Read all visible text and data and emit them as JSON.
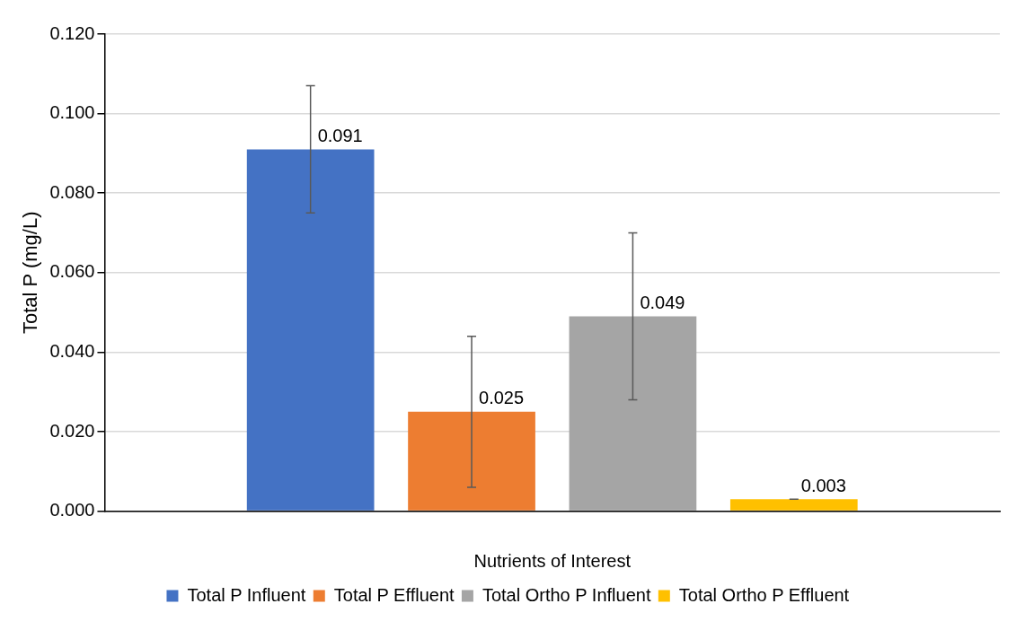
{
  "chart_data": {
    "type": "bar",
    "xlabel": "Nutrients of Interest",
    "ylabel": "Total P (mg/L)",
    "categories": [
      null
    ],
    "series": [
      {
        "name": "Total P Influent",
        "color": "#4472c4",
        "values": [
          0.091
        ],
        "errors": [
          0.016
        ]
      },
      {
        "name": "Total P Effluent",
        "color": "#ed7d31",
        "values": [
          0.025
        ],
        "errors": [
          0.019
        ]
      },
      {
        "name": "Total Ortho P Influent",
        "color": "#a5a5a5",
        "values": [
          0.049
        ],
        "errors": [
          0.021
        ]
      },
      {
        "name": "Total Ortho P Effluent",
        "color": "#ffc000",
        "values": [
          0.003
        ],
        "errors": [
          0
        ]
      }
    ],
    "ylim": [
      0,
      0.12
    ],
    "yticks": [
      {
        "value": 0,
        "label": "0.000"
      },
      {
        "value": 0.02,
        "label": "0.020"
      },
      {
        "value": 0.04,
        "label": "0.040"
      },
      {
        "value": 0.06,
        "label": "0.060"
      },
      {
        "value": 0.08,
        "label": "0.080"
      },
      {
        "value": 0.1,
        "label": "0.100"
      },
      {
        "value": 0.12,
        "label": "0.120"
      }
    ],
    "grid": "y",
    "legend": "bottom",
    "data_labels": true
  }
}
